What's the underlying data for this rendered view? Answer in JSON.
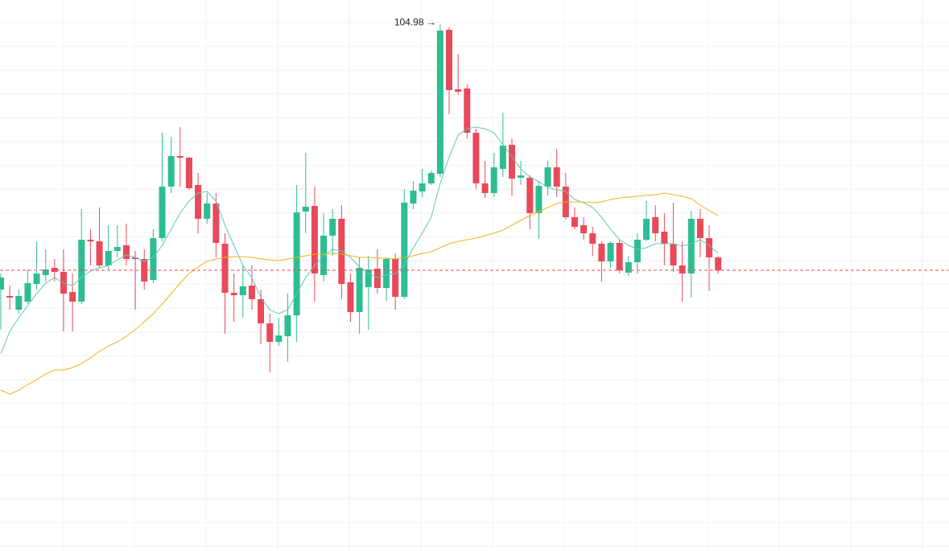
{
  "chart_data": {
    "type": "candlestick",
    "open": [
      72.0,
      71.2,
      69.5,
      70.5,
      72.7,
      73.8,
      74.7,
      74.2,
      71.7,
      70.5,
      78.2,
      78.0,
      75.0,
      76.8,
      77.5,
      76.0,
      75.8,
      73.2,
      78.4,
      84.8,
      88.6,
      88.4,
      85.0,
      80.8,
      82.7,
      77.7,
      71.6,
      71.3,
      72.5,
      70.8,
      67.8,
      65.5,
      66.2,
      68.8,
      81.7,
      82.4,
      73.8,
      78.7,
      80.8,
      72.9,
      69.2,
      72.3,
      74.6,
      72.2,
      75.8,
      71.1,
      82.7,
      84.2,
      85.2,
      86.4,
      104.3,
      96.9,
      97.0,
      91.5,
      85.2,
      84.0,
      87.0,
      90.0,
      85.9,
      85.9,
      81.5,
      84.8,
      87.2,
      84.8,
      81.0,
      80.0,
      79.0,
      77.7,
      75.5,
      77.8,
      74.1,
      75.4,
      78.2,
      81.0,
      79.2,
      77.7,
      75.0,
      74.0,
      80.8,
      78.4,
      76.0
    ],
    "high": [
      74.0,
      72.5,
      72.0,
      74.5,
      78.0,
      77.0,
      75.8,
      77.0,
      74.0,
      82.0,
      79.5,
      82.2,
      80.0,
      80.0,
      80.2,
      76.8,
      77.0,
      79.5,
      91.5,
      91.0,
      92.2,
      88.5,
      86.5,
      84.0,
      84.0,
      79.0,
      74.0,
      75.0,
      75.0,
      72.0,
      69.0,
      68.5,
      71.5,
      85.0,
      89.0,
      84.8,
      81.5,
      82.0,
      82.5,
      74.0,
      76.0,
      76.2,
      77.0,
      76.0,
      76.5,
      84.5,
      85.5,
      87.0,
      86.8,
      104.98,
      104.6,
      101.3,
      97.5,
      92.0,
      88.0,
      89.0,
      94.0,
      90.8,
      88.0,
      86.2,
      85.5,
      88.0,
      89.5,
      86.5,
      82.2,
      81.0,
      79.8,
      78.0,
      78.0,
      78.2,
      76.2,
      79.0,
      83.0,
      82.5,
      81.5,
      82.8,
      78.0,
      81.8,
      82.0,
      80.0,
      76.2
    ],
    "low": [
      67.0,
      69.5,
      69.0,
      70.2,
      72.0,
      73.0,
      73.0,
      66.8,
      66.8,
      70.2,
      75.0,
      74.8,
      74.5,
      76.0,
      75.0,
      69.5,
      72.0,
      72.8,
      78.0,
      84.0,
      84.8,
      84.4,
      79.0,
      80.2,
      76.0,
      66.5,
      68.0,
      68.5,
      69.5,
      65.2,
      61.7,
      65.0,
      63.0,
      65.5,
      79.0,
      70.5,
      73.0,
      76.2,
      70.8,
      68.0,
      66.5,
      67.0,
      71.5,
      70.5,
      69.5,
      70.8,
      82.0,
      83.5,
      85.0,
      86.0,
      93.8,
      96.2,
      90.8,
      84.5,
      83.4,
      83.5,
      86.0,
      83.6,
      85.0,
      79.5,
      78.3,
      83.7,
      83.5,
      80.7,
      79.5,
      78.2,
      76.2,
      73.0,
      74.7,
      74.0,
      73.7,
      74.0,
      78.0,
      78.0,
      75.0,
      74.2,
      70.5,
      71.0,
      76.0,
      71.8,
      74.0
    ],
    "close": [
      73.5,
      71.0,
      71.2,
      72.8,
      74.0,
      74.5,
      74.2,
      71.5,
      70.5,
      78.2,
      78.0,
      75.0,
      76.8,
      77.3,
      75.8,
      75.8,
      73.0,
      78.4,
      84.8,
      88.6,
      88.4,
      84.6,
      80.8,
      82.7,
      77.8,
      71.6,
      71.3,
      72.4,
      70.8,
      67.8,
      65.5,
      66.3,
      68.8,
      81.6,
      82.3,
      74.0,
      78.7,
      80.8,
      72.7,
      69.2,
      74.7,
      74.5,
      72.2,
      75.8,
      71.1,
      82.8,
      84.3,
      85.2,
      86.5,
      104.2,
      96.8,
      96.6,
      91.5,
      85.2,
      84.0,
      87.2,
      89.9,
      85.8,
      86.2,
      81.5,
      84.9,
      87.2,
      84.8,
      81.0,
      79.8,
      79.0,
      77.7,
      75.5,
      77.8,
      74.4,
      75.4,
      78.2,
      80.8,
      79.0,
      77.7,
      75.0,
      74.0,
      80.8,
      78.4,
      76.0,
      74.4
    ],
    "series": [
      {
        "color": "#5cc9b5",
        "values": [
          64.0,
          66.8,
          68.5,
          70.0,
          71.5,
          72.8,
          73.5,
          72.8,
          72.5,
          73.5,
          74.3,
          74.7,
          75.0,
          75.7,
          76.3,
          76.0,
          75.5,
          76.0,
          77.5,
          79.5,
          81.5,
          83.0,
          84.0,
          84.2,
          83.0,
          80.0,
          77.5,
          75.0,
          73.5,
          71.0,
          69.5,
          69.0,
          69.5,
          71.5,
          73.5,
          75.0,
          76.2,
          77.0,
          76.8,
          76.0,
          74.8,
          74.0,
          73.5,
          73.8,
          74.0,
          75.0,
          77.2,
          79.0,
          81.0,
          85.2,
          88.5,
          91.2,
          92.0,
          92.2,
          92.0,
          91.5,
          90.0,
          88.5,
          87.0,
          86.0,
          85.4,
          84.7,
          84.4,
          84.2,
          83.2,
          82.8,
          82.2,
          81.0,
          79.5,
          78.2,
          77.5,
          77.0,
          77.2,
          77.7,
          77.7,
          77.7,
          77.4,
          77.7,
          78.2,
          77.5,
          76.5
        ]
      },
      {
        "color": "#f2b416",
        "values": [
          59.5,
          59.0,
          59.5,
          60.2,
          60.8,
          61.5,
          62.0,
          62.0,
          62.3,
          62.8,
          63.5,
          64.3,
          65.0,
          65.5,
          66.2,
          67.0,
          68.0,
          69.0,
          70.2,
          71.5,
          72.8,
          74.0,
          74.8,
          75.5,
          75.8,
          76.0,
          76.1,
          76.1,
          76.0,
          75.8,
          75.7,
          75.6,
          75.8,
          76.0,
          76.2,
          76.4,
          76.4,
          76.5,
          76.4,
          76.2,
          76.0,
          76.0,
          75.9,
          75.9,
          75.8,
          76.0,
          76.2,
          76.5,
          76.7,
          77.2,
          77.7,
          78.0,
          78.2,
          78.4,
          78.7,
          79.0,
          79.4,
          80.0,
          80.6,
          81.2,
          81.7,
          82.2,
          82.7,
          82.9,
          82.9,
          82.9,
          82.8,
          82.9,
          83.2,
          83.4,
          83.5,
          83.6,
          83.7,
          83.8,
          84.0,
          83.8,
          83.6,
          83.3,
          82.5,
          81.8,
          81.2
        ]
      }
    ],
    "up_color": "#2ebd93",
    "down_color": "#e84a5a",
    "annotations": [
      {
        "text": "104.98 →"
      }
    ],
    "ylim": [
      39.5,
      108
    ],
    "grid": true
  }
}
